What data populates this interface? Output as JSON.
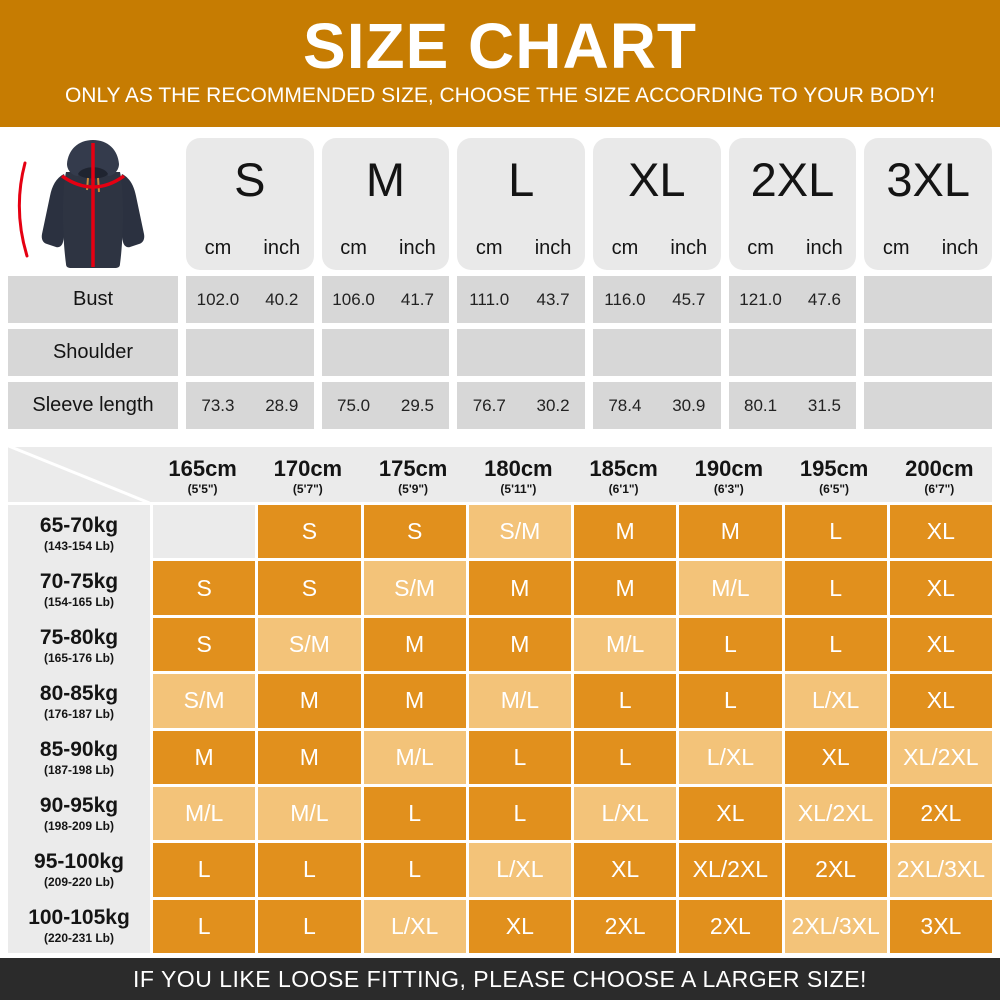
{
  "header": {
    "title": "SIZE CHART",
    "subtitle": "ONLY AS THE RECOMMENDED SIZE, CHOOSE THE SIZE ACCORDING TO YOUR BODY!",
    "bg_color": "#C67C02",
    "text_color": "#FFFFFF"
  },
  "images": {
    "hoodie": "navy-hoodie-with-red-measurement-lines"
  },
  "size_table": {
    "unit_labels": [
      "cm",
      "inch"
    ],
    "columns": [
      "S",
      "M",
      "L",
      "XL",
      "2XL",
      "3XL"
    ],
    "rows": [
      {
        "label": "Bust",
        "values": [
          [
            "102.0",
            "40.2"
          ],
          [
            "106.0",
            "41.7"
          ],
          [
            "111.0",
            "43.7"
          ],
          [
            "116.0",
            "45.7"
          ],
          [
            "121.0",
            "47.6"
          ],
          [
            "",
            ""
          ]
        ]
      },
      {
        "label": "Shoulder",
        "values": [
          [
            "",
            ""
          ],
          [
            "",
            ""
          ],
          [
            "",
            ""
          ],
          [
            "",
            ""
          ],
          [
            "",
            ""
          ],
          [
            "",
            ""
          ]
        ]
      },
      {
        "label": "Sleeve length",
        "values": [
          [
            "73.3",
            "28.9"
          ],
          [
            "75.0",
            "29.5"
          ],
          [
            "76.7",
            "30.2"
          ],
          [
            "78.4",
            "30.9"
          ],
          [
            "80.1",
            "31.5"
          ],
          [
            "",
            ""
          ]
        ]
      }
    ]
  },
  "fit_matrix": {
    "height_columns": [
      {
        "cm": "165cm",
        "ft": "(5'5\")"
      },
      {
        "cm": "170cm",
        "ft": "(5'7\")"
      },
      {
        "cm": "175cm",
        "ft": "(5'9\")"
      },
      {
        "cm": "180cm",
        "ft": "(5'11\")"
      },
      {
        "cm": "185cm",
        "ft": "(6'1\")"
      },
      {
        "cm": "190cm",
        "ft": "(6'3\")"
      },
      {
        "cm": "195cm",
        "ft": "(6'5\")"
      },
      {
        "cm": "200cm",
        "ft": "(6'7\")"
      }
    ],
    "weight_rows": [
      {
        "kg": "65-70kg",
        "lb": "(143-154 Lb)",
        "cells": [
          {
            "label": "",
            "tone": "empty"
          },
          {
            "label": "S",
            "tone": "dark"
          },
          {
            "label": "S",
            "tone": "dark"
          },
          {
            "label": "S/M",
            "tone": "light"
          },
          {
            "label": "M",
            "tone": "dark"
          },
          {
            "label": "M",
            "tone": "dark"
          },
          {
            "label": "L",
            "tone": "dark"
          },
          {
            "label": "XL",
            "tone": "dark"
          }
        ]
      },
      {
        "kg": "70-75kg",
        "lb": "(154-165 Lb)",
        "cells": [
          {
            "label": "S",
            "tone": "dark"
          },
          {
            "label": "S",
            "tone": "dark"
          },
          {
            "label": "S/M",
            "tone": "light"
          },
          {
            "label": "M",
            "tone": "dark"
          },
          {
            "label": "M",
            "tone": "dark"
          },
          {
            "label": "M/L",
            "tone": "light"
          },
          {
            "label": "L",
            "tone": "dark"
          },
          {
            "label": "XL",
            "tone": "dark"
          }
        ]
      },
      {
        "kg": "75-80kg",
        "lb": "(165-176 Lb)",
        "cells": [
          {
            "label": "S",
            "tone": "dark"
          },
          {
            "label": "S/M",
            "tone": "light"
          },
          {
            "label": "M",
            "tone": "dark"
          },
          {
            "label": "M",
            "tone": "dark"
          },
          {
            "label": "M/L",
            "tone": "light"
          },
          {
            "label": "L",
            "tone": "dark"
          },
          {
            "label": "L",
            "tone": "dark"
          },
          {
            "label": "XL",
            "tone": "dark"
          }
        ]
      },
      {
        "kg": "80-85kg",
        "lb": "(176-187 Lb)",
        "cells": [
          {
            "label": "S/M",
            "tone": "light"
          },
          {
            "label": "M",
            "tone": "dark"
          },
          {
            "label": "M",
            "tone": "dark"
          },
          {
            "label": "M/L",
            "tone": "light"
          },
          {
            "label": "L",
            "tone": "dark"
          },
          {
            "label": "L",
            "tone": "dark"
          },
          {
            "label": "L/XL",
            "tone": "light"
          },
          {
            "label": "XL",
            "tone": "dark"
          }
        ]
      },
      {
        "kg": "85-90kg",
        "lb": "(187-198 Lb)",
        "cells": [
          {
            "label": "M",
            "tone": "dark"
          },
          {
            "label": "M",
            "tone": "dark"
          },
          {
            "label": "M/L",
            "tone": "light"
          },
          {
            "label": "L",
            "tone": "dark"
          },
          {
            "label": "L",
            "tone": "dark"
          },
          {
            "label": "L/XL",
            "tone": "light"
          },
          {
            "label": "XL",
            "tone": "dark"
          },
          {
            "label": "XL/2XL",
            "tone": "light"
          }
        ]
      },
      {
        "kg": "90-95kg",
        "lb": "(198-209 Lb)",
        "cells": [
          {
            "label": "M/L",
            "tone": "light"
          },
          {
            "label": "M/L",
            "tone": "light"
          },
          {
            "label": "L",
            "tone": "dark"
          },
          {
            "label": "L",
            "tone": "dark"
          },
          {
            "label": "L/XL",
            "tone": "light"
          },
          {
            "label": "XL",
            "tone": "dark"
          },
          {
            "label": "XL/2XL",
            "tone": "light"
          },
          {
            "label": "2XL",
            "tone": "dark"
          }
        ]
      },
      {
        "kg": "95-100kg",
        "lb": "(209-220 Lb)",
        "cells": [
          {
            "label": "L",
            "tone": "dark"
          },
          {
            "label": "L",
            "tone": "dark"
          },
          {
            "label": "L",
            "tone": "dark"
          },
          {
            "label": "L/XL",
            "tone": "light"
          },
          {
            "label": "XL",
            "tone": "dark"
          },
          {
            "label": "XL/2XL",
            "tone": "dark"
          },
          {
            "label": "2XL",
            "tone": "dark"
          },
          {
            "label": "2XL/3XL",
            "tone": "light"
          }
        ]
      },
      {
        "kg": "100-105kg",
        "lb": "(220-231 Lb)",
        "cells": [
          {
            "label": "L",
            "tone": "dark"
          },
          {
            "label": "L",
            "tone": "dark"
          },
          {
            "label": "L/XL",
            "tone": "light"
          },
          {
            "label": "XL",
            "tone": "dark"
          },
          {
            "label": "2XL",
            "tone": "dark"
          },
          {
            "label": "2XL",
            "tone": "dark"
          },
          {
            "label": "2XL/3XL",
            "tone": "light"
          },
          {
            "label": "3XL",
            "tone": "dark"
          }
        ]
      }
    ],
    "tone_colors": {
      "dark": "#E1901D",
      "light": "#F3C379",
      "empty": "#EBEBEB"
    }
  },
  "footer": {
    "text": "IF YOU LIKE LOOSE FITTING, PLEASE CHOOSE A LARGER SIZE!",
    "bg_color": "#2B2B2B",
    "text_color": "#FFFFFF"
  }
}
